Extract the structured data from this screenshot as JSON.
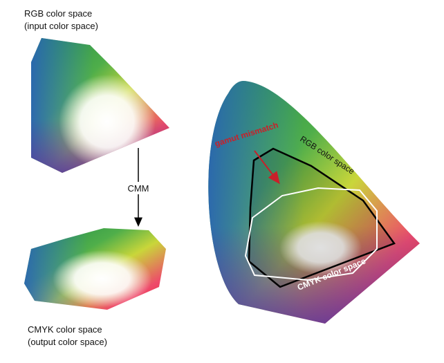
{
  "left": {
    "input_title": "RGB color space",
    "input_subtitle": "(input color space)",
    "transform": "CMM",
    "output_title": "CMYK color space",
    "output_subtitle": "(output color space)"
  },
  "right": {
    "mismatch": "gamut mismatch",
    "rgb_label": "RGB color space",
    "cmyk_label": "CMYK color space"
  }
}
